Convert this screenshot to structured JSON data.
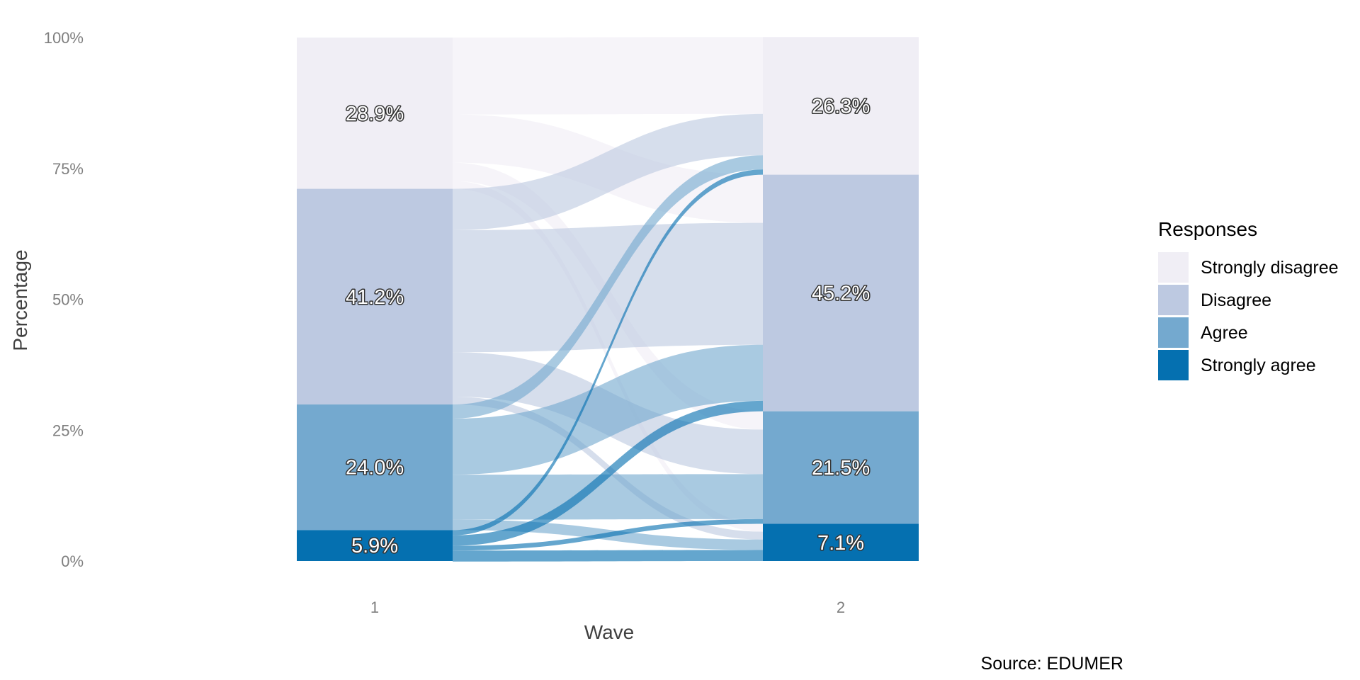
{
  "chart_data": {
    "type": "alluvial",
    "xlabel": "Wave",
    "ylabel": "Percentage",
    "caption": "Source: EDUMER",
    "x_ticks": [
      "1",
      "2"
    ],
    "y_ticks": [
      "0%",
      "25%",
      "50%",
      "75%",
      "100%"
    ],
    "ylim": [
      0,
      100
    ],
    "legend": {
      "title": "Responses",
      "position": "right"
    },
    "categories": [
      "Strongly disagree",
      "Disagree",
      "Agree",
      "Strongly agree"
    ],
    "colors": {
      "Strongly disagree": "#f0eef5",
      "Disagree": "#bdc9e1",
      "Agree": "#74a9cf",
      "Strongly agree": "#0570b0"
    },
    "waves": [
      {
        "wave": "1",
        "values": [
          28.9,
          41.2,
          24.0,
          5.9
        ],
        "labels": [
          "28.9%",
          "41.2%",
          "24.0%",
          "5.9%"
        ]
      },
      {
        "wave": "2",
        "values": [
          26.3,
          45.2,
          21.5,
          7.1
        ],
        "labels": [
          "26.3%",
          "45.2%",
          "21.5%",
          "7.1%"
        ]
      }
    ],
    "flows": [
      {
        "from": "Strongly disagree",
        "to": "Strongly disagree",
        "value": 14.7
      },
      {
        "from": "Strongly disagree",
        "to": "Disagree",
        "value": 9.2
      },
      {
        "from": "Strongly disagree",
        "to": "Agree",
        "value": 3.5
      },
      {
        "from": "Strongly disagree",
        "to": "Strongly agree",
        "value": 1.5
      },
      {
        "from": "Disagree",
        "to": "Strongly disagree",
        "value": 7.9
      },
      {
        "from": "Disagree",
        "to": "Disagree",
        "value": 23.3
      },
      {
        "from": "Disagree",
        "to": "Agree",
        "value": 8.5
      },
      {
        "from": "Disagree",
        "to": "Strongly agree",
        "value": 1.5
      },
      {
        "from": "Agree",
        "to": "Strongly disagree",
        "value": 2.7
      },
      {
        "from": "Agree",
        "to": "Disagree",
        "value": 10.7
      },
      {
        "from": "Agree",
        "to": "Agree",
        "value": 8.6
      },
      {
        "from": "Agree",
        "to": "Strongly agree",
        "value": 2.0
      },
      {
        "from": "Strongly agree",
        "to": "Strongly disagree",
        "value": 1.0
      },
      {
        "from": "Strongly agree",
        "to": "Disagree",
        "value": 2.0
      },
      {
        "from": "Strongly agree",
        "to": "Agree",
        "value": 0.9
      },
      {
        "from": "Strongly agree",
        "to": "Strongly agree",
        "value": 2.1
      }
    ]
  }
}
